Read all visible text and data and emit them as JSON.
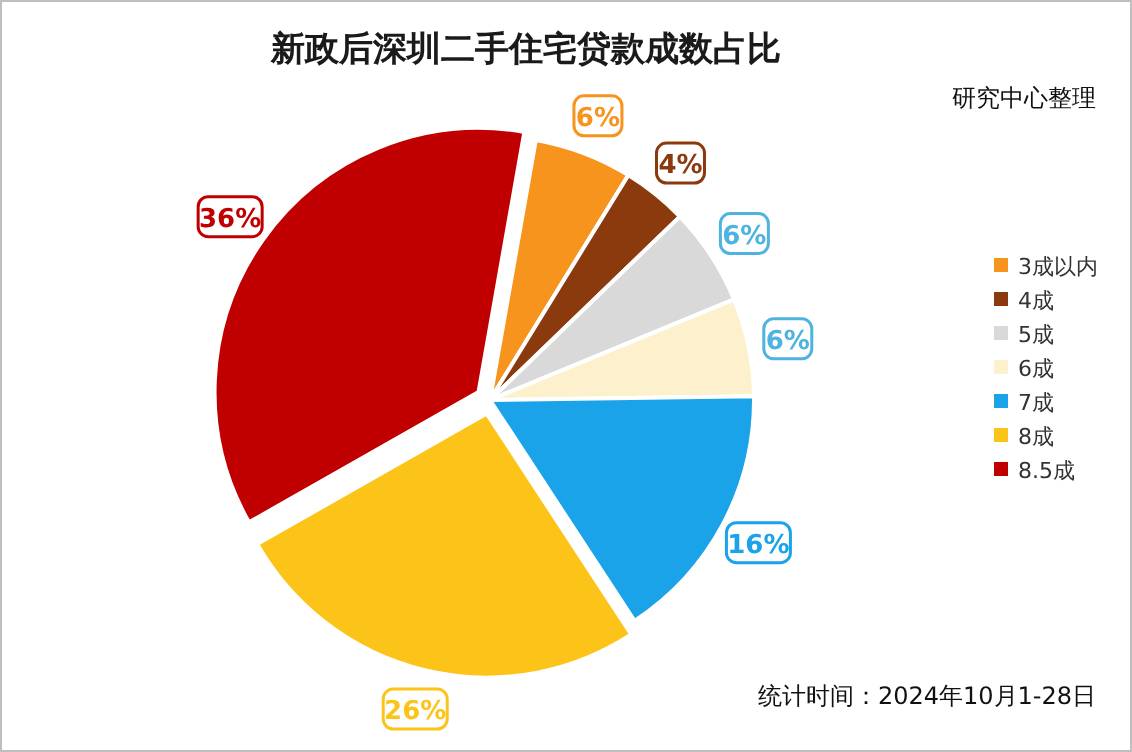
{
  "chart_data": {
    "type": "pie",
    "title": "新政后深圳二手住宅贷款成数占比",
    "categories": [
      "3成以内",
      "4成",
      "5成",
      "6成",
      "7成",
      "8成",
      "8.5成"
    ],
    "values": [
      6,
      4,
      6,
      6,
      16,
      26,
      36
    ],
    "colors": [
      "#f7941d",
      "#8b3a0e",
      "#d9d9d9",
      "#fdf0cc",
      "#1aa3e8",
      "#fcc419",
      "#c00000"
    ],
    "value_labels": [
      "6%",
      "4%",
      "6%",
      "6%",
      "16%",
      "26%",
      "36%"
    ],
    "legend": "right",
    "annotations": [
      "研究中心整理",
      "统计时间：2024年10月1-28日"
    ]
  }
}
